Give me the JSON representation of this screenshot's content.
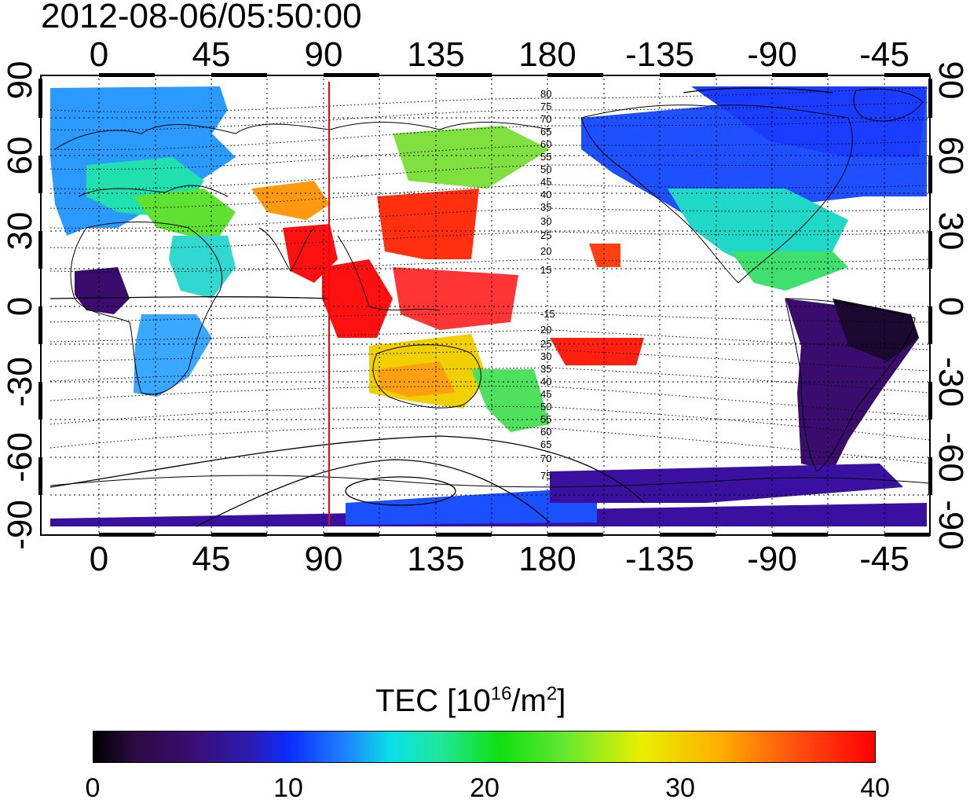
{
  "title": "2012-08-06/05:50:00",
  "axes": {
    "lon_top": [
      "0",
      "45",
      "90",
      "135",
      "180",
      "-135",
      "-90",
      "-45"
    ],
    "lon_bottom": [
      "0",
      "45",
      "90",
      "135",
      "180",
      "-135",
      "-90",
      "-45"
    ],
    "lat_left": [
      "90",
      "60",
      "30",
      "0",
      "-30",
      "-60",
      "-90"
    ],
    "lat_right": [
      "90",
      "60",
      "30",
      "0",
      "-30",
      "-60",
      "-90"
    ]
  },
  "contour_labels": {
    "north": [
      "80",
      "75",
      "70",
      "65",
      "60",
      "55",
      "50",
      "45",
      "40",
      "35",
      "30",
      "25",
      "20",
      "15"
    ],
    "south": [
      "-15",
      "20",
      "25",
      "30",
      "35",
      "40",
      "45",
      "50",
      "55",
      "60",
      "65",
      "70",
      "75"
    ]
  },
  "colorbar": {
    "title_main": "TEC  [10",
    "title_sup1": "16",
    "title_mid": "/m",
    "title_sup2": "2",
    "title_end": "]",
    "ticks": [
      "0",
      "10",
      "20",
      "30",
      "40"
    ],
    "colors": [
      "#000000",
      "#3a0c6e",
      "#0a2cff",
      "#08e0e8",
      "#10e010",
      "#e8f000",
      "#ff0000"
    ]
  },
  "meridian_marker": {
    "longitude": 92,
    "color": "#ff0000"
  }
}
